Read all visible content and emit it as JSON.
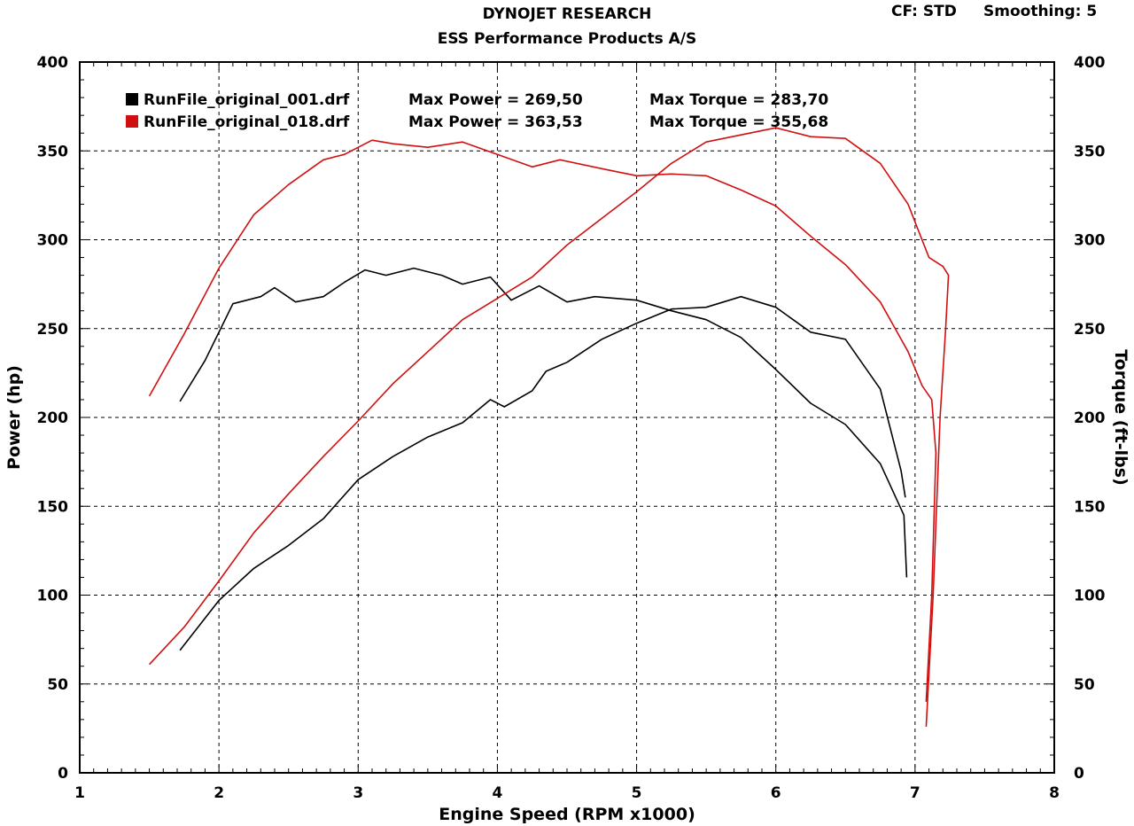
{
  "header": {
    "title": "DYNOJET RESEARCH",
    "subtitle": "ESS Performance Products A/S",
    "cf_label": "CF: STD",
    "smoothing_label": "Smoothing: 5"
  },
  "legend": [
    {
      "color_name": "black",
      "swatch": "#000000",
      "file": "RunFile_original_001.drf",
      "power_text": "Max Power = 269,50",
      "torque_text": "Max Torque = 283,70"
    },
    {
      "color_name": "red",
      "swatch": "#d01010",
      "file": "RunFile_original_018.drf",
      "power_text": "Max Power = 363,53",
      "torque_text": "Max Torque = 355,68"
    }
  ],
  "chart_data": {
    "type": "line",
    "xlabel": "Engine Speed (RPM x1000)",
    "ylabel_left": "Power (hp)",
    "ylabel_right": "Torque (ft-lbs)",
    "xlim": [
      1,
      8
    ],
    "ylim": [
      0,
      400
    ],
    "x_ticks": [
      "1",
      "2",
      "3",
      "4",
      "5",
      "6",
      "7",
      "8"
    ],
    "y_ticks": [
      "0",
      "50",
      "100",
      "150",
      "200",
      "250",
      "300",
      "350",
      "400"
    ],
    "grid": true,
    "series": [
      {
        "run": "RunFile_original_001.drf",
        "quantity": "power",
        "axis": "left",
        "color": "#000000",
        "x": [
          1.72,
          2.0,
          2.25,
          2.5,
          2.75,
          3.0,
          3.25,
          3.5,
          3.75,
          3.95,
          4.05,
          4.25,
          4.35,
          4.5,
          4.75,
          5.0,
          5.25,
          5.5,
          5.75,
          6.0,
          6.25,
          6.5,
          6.75,
          6.9,
          6.93
        ],
        "y": [
          69,
          97,
          115,
          128,
          143,
          165,
          178,
          189,
          197,
          210,
          206,
          215,
          226,
          231,
          244,
          253,
          261,
          262,
          268,
          262,
          248,
          244,
          216,
          170,
          155
        ]
      },
      {
        "run": "RunFile_original_001.drf",
        "quantity": "torque",
        "axis": "right",
        "color": "#000000",
        "x": [
          1.72,
          1.9,
          2.1,
          2.3,
          2.4,
          2.55,
          2.75,
          2.9,
          3.05,
          3.2,
          3.4,
          3.6,
          3.75,
          3.95,
          4.1,
          4.3,
          4.5,
          4.7,
          5.0,
          5.25,
          5.5,
          5.75,
          6.0,
          6.25,
          6.5,
          6.75,
          6.92,
          6.94
        ],
        "y": [
          209,
          232,
          264,
          268,
          273,
          265,
          268,
          276,
          283,
          280,
          284,
          280,
          275,
          279,
          266,
          274,
          265,
          268,
          266,
          260,
          255,
          245,
          227,
          208,
          196,
          174,
          145,
          110
        ]
      },
      {
        "run": "RunFile_original_018.drf",
        "quantity": "power",
        "axis": "left",
        "color": "#d01010",
        "x": [
          1.5,
          1.75,
          2.0,
          2.25,
          2.5,
          2.75,
          3.0,
          3.25,
          3.5,
          3.75,
          4.0,
          4.25,
          4.5,
          4.75,
          5.0,
          5.25,
          5.5,
          5.75,
          6.0,
          6.25,
          6.5,
          6.75,
          6.95,
          7.1,
          7.2,
          7.24,
          7.22,
          7.18,
          7.13,
          7.08
        ],
        "y": [
          61,
          82,
          108,
          135,
          157,
          178,
          198,
          219,
          237,
          255,
          267,
          279,
          297,
          312,
          327,
          343,
          355,
          359,
          363,
          358,
          357,
          343,
          320,
          290,
          285,
          280,
          250,
          200,
          100,
          26
        ]
      },
      {
        "run": "RunFile_original_018.drf",
        "quantity": "torque",
        "axis": "right",
        "color": "#d01010",
        "x": [
          1.5,
          1.75,
          2.0,
          2.25,
          2.5,
          2.75,
          2.9,
          3.1,
          3.25,
          3.5,
          3.75,
          4.0,
          4.25,
          4.45,
          4.75,
          5.0,
          5.25,
          5.5,
          5.75,
          6.0,
          6.25,
          6.5,
          6.75,
          6.95,
          7.05,
          7.12,
          7.15,
          7.12,
          7.08
        ],
        "y": [
          212,
          247,
          284,
          314,
          331,
          345,
          348,
          356,
          354,
          352,
          355,
          348,
          341,
          345,
          340,
          336,
          337,
          336,
          328,
          319,
          302,
          286,
          265,
          237,
          218,
          210,
          180,
          100,
          40
        ]
      }
    ]
  }
}
